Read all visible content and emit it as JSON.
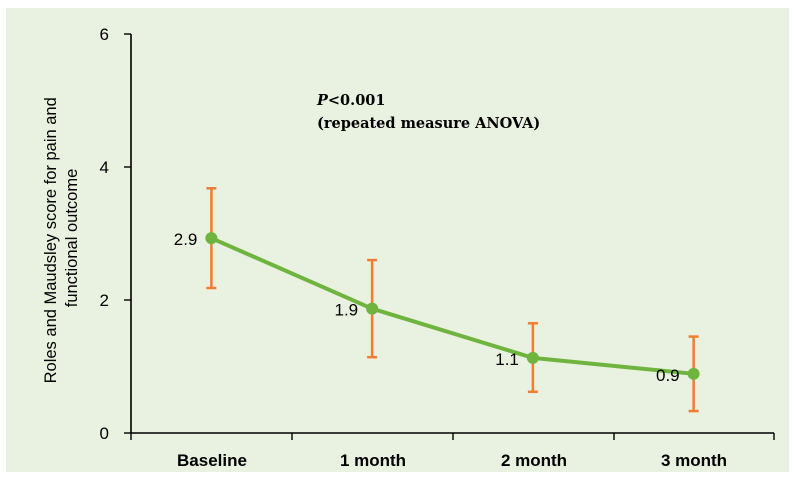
{
  "chart_data": {
    "type": "line",
    "categories": [
      "Baseline",
      "1 month",
      "2 month",
      "3 month"
    ],
    "series": [
      {
        "values": [
          2.93,
          1.87,
          1.13,
          0.89
        ],
        "error_low": [
          2.18,
          1.14,
          0.62,
          0.33
        ],
        "error_high": [
          3.68,
          2.6,
          1.65,
          1.45
        ],
        "color": "#6fb43f",
        "error_color": "#ef7d32"
      }
    ],
    "data_labels": [
      "2.9",
      "1.9",
      "1.1",
      "0.9"
    ],
    "ylim": [
      0,
      6
    ],
    "yticks": [
      "0",
      "2",
      "4",
      "6"
    ],
    "ylabel_line1": "Roles and Maudsley score for pain and",
    "ylabel_line2": "functional outcome",
    "annotation": {
      "p_letter": "P",
      "p_value": "<0.001",
      "method": "(repeated measure ANOVA)"
    },
    "grid": false,
    "background": "#e9f1e0"
  }
}
